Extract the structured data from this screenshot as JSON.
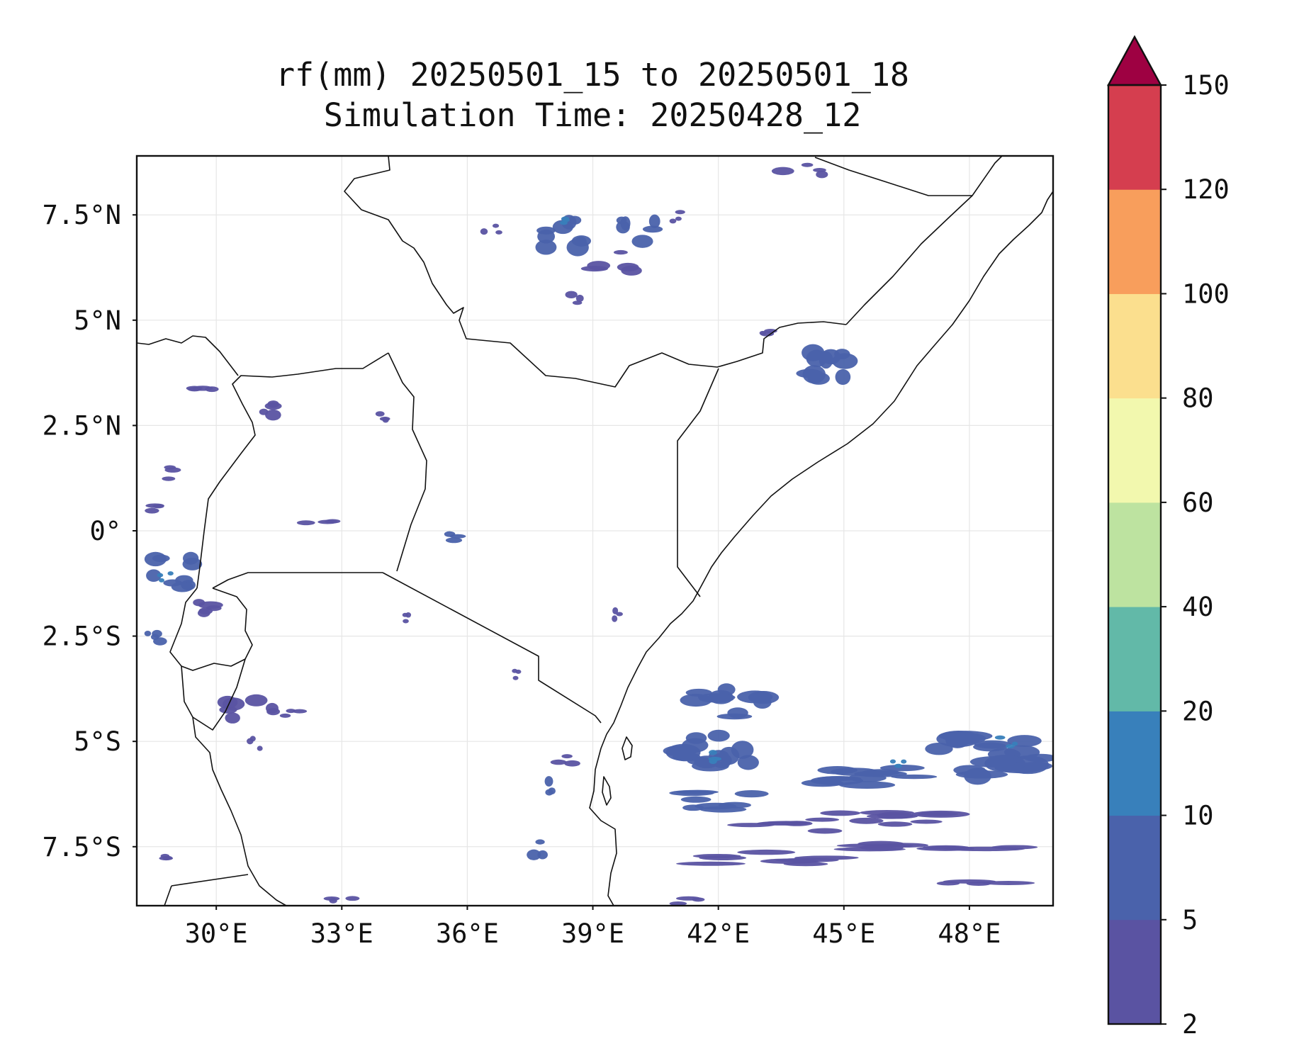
{
  "figure": {
    "title_line1": "rf(mm) 20250501_15 to 20250501_18",
    "title_line2": "Simulation Time: 20250428_12"
  },
  "map": {
    "extent": {
      "lon_min": 28.1,
      "lon_max": 50.0,
      "lat_min": -8.9,
      "lat_max": 8.9
    },
    "x_ticks": [
      {
        "lon": 30,
        "label": "30°E"
      },
      {
        "lon": 33,
        "label": "33°E"
      },
      {
        "lon": 36,
        "label": "36°E"
      },
      {
        "lon": 39,
        "label": "39°E"
      },
      {
        "lon": 42,
        "label": "42°E"
      },
      {
        "lon": 45,
        "label": "45°E"
      },
      {
        "lon": 48,
        "label": "48°E"
      }
    ],
    "y_ticks": [
      {
        "lat": 7.5,
        "label": "7.5°N"
      },
      {
        "lat": 5,
        "label": "5°N"
      },
      {
        "lat": 2.5,
        "label": "2.5°N"
      },
      {
        "lat": 0,
        "label": "0°"
      },
      {
        "lat": -2.5,
        "label": "2.5°S"
      },
      {
        "lat": -5,
        "label": "5°S"
      },
      {
        "lat": -7.5,
        "label": "7.5°S"
      }
    ],
    "gridlines": true,
    "rain_cells": [
      {
        "lon": 38.2,
        "lat": 7.0,
        "w": 1.4,
        "h": 1.3,
        "level": 1
      },
      {
        "lon": 40.0,
        "lat": 7.2,
        "w": 1.2,
        "h": 1.0,
        "level": 1
      },
      {
        "lon": 39.5,
        "lat": 6.4,
        "w": 1.6,
        "h": 0.7,
        "level": 0
      },
      {
        "lon": 38.4,
        "lat": 7.4,
        "w": 0.5,
        "h": 0.4,
        "level": 2
      },
      {
        "lon": 38.7,
        "lat": 5.5,
        "w": 0.8,
        "h": 0.6,
        "level": 0
      },
      {
        "lon": 36.6,
        "lat": 7.1,
        "w": 0.5,
        "h": 0.5,
        "level": 0
      },
      {
        "lon": 41.0,
        "lat": 7.4,
        "w": 0.7,
        "h": 0.6,
        "level": 0
      },
      {
        "lon": 44.0,
        "lat": 8.5,
        "w": 1.4,
        "h": 0.6,
        "level": 0
      },
      {
        "lon": 44.7,
        "lat": 4.0,
        "w": 1.6,
        "h": 1.3,
        "level": 1
      },
      {
        "lon": 43.2,
        "lat": 4.7,
        "w": 0.8,
        "h": 0.4,
        "level": 0
      },
      {
        "lon": 29.5,
        "lat": 3.4,
        "w": 1.8,
        "h": 0.4,
        "level": 0
      },
      {
        "lon": 31.3,
        "lat": 2.9,
        "w": 1.1,
        "h": 0.8,
        "level": 0
      },
      {
        "lon": 33.9,
        "lat": 2.6,
        "w": 0.8,
        "h": 0.5,
        "level": 0
      },
      {
        "lon": 28.8,
        "lat": 1.4,
        "w": 1.0,
        "h": 0.4,
        "level": 0
      },
      {
        "lon": 28.9,
        "lat": 0.5,
        "w": 1.1,
        "h": 0.4,
        "level": 0
      },
      {
        "lon": 29.0,
        "lat": -1.0,
        "w": 1.6,
        "h": 1.1,
        "level": 1
      },
      {
        "lon": 28.8,
        "lat": -1.1,
        "w": 0.4,
        "h": 0.3,
        "level": 2
      },
      {
        "lon": 30.0,
        "lat": -1.7,
        "w": 1.4,
        "h": 0.8,
        "level": 0
      },
      {
        "lon": 28.6,
        "lat": -2.7,
        "w": 0.8,
        "h": 0.9,
        "level": 1
      },
      {
        "lon": 30.8,
        "lat": -4.2,
        "w": 1.5,
        "h": 0.9,
        "level": 0
      },
      {
        "lon": 31.8,
        "lat": -4.3,
        "w": 1.2,
        "h": 0.3,
        "level": 0
      },
      {
        "lon": 30.9,
        "lat": -5.1,
        "w": 0.5,
        "h": 0.5,
        "level": 0
      },
      {
        "lon": 32.5,
        "lat": 0.2,
        "w": 1.5,
        "h": 0.4,
        "level": 0
      },
      {
        "lon": 35.9,
        "lat": -0.1,
        "w": 1.1,
        "h": 0.5,
        "level": 1
      },
      {
        "lon": 34.5,
        "lat": -2.0,
        "w": 0.4,
        "h": 0.5,
        "level": 0
      },
      {
        "lon": 39.5,
        "lat": -1.9,
        "w": 0.4,
        "h": 0.5,
        "level": 0
      },
      {
        "lon": 42.2,
        "lat": -4.0,
        "w": 2.2,
        "h": 1.0,
        "level": 1
      },
      {
        "lon": 42.0,
        "lat": -5.2,
        "w": 2.2,
        "h": 1.3,
        "level": 1
      },
      {
        "lon": 41.8,
        "lat": -5.3,
        "w": 1.0,
        "h": 0.5,
        "level": 2
      },
      {
        "lon": 42.0,
        "lat": -6.4,
        "w": 2.8,
        "h": 0.6,
        "level": 1
      },
      {
        "lon": 44.0,
        "lat": -7.0,
        "w": 3.0,
        "h": 0.4,
        "level": 0
      },
      {
        "lon": 45.5,
        "lat": -5.8,
        "w": 3.2,
        "h": 0.7,
        "level": 1
      },
      {
        "lon": 46.2,
        "lat": -5.5,
        "w": 0.6,
        "h": 0.3,
        "level": 2
      },
      {
        "lon": 48.5,
        "lat": -5.3,
        "w": 3.0,
        "h": 1.3,
        "level": 1
      },
      {
        "lon": 48.9,
        "lat": -5.0,
        "w": 0.6,
        "h": 0.3,
        "level": 2
      },
      {
        "lon": 47.2,
        "lat": -7.5,
        "w": 4.5,
        "h": 0.4,
        "level": 0
      },
      {
        "lon": 46.0,
        "lat": -6.8,
        "w": 3.5,
        "h": 0.5,
        "level": 0
      },
      {
        "lon": 43.0,
        "lat": -7.8,
        "w": 4.0,
        "h": 0.4,
        "level": 0
      },
      {
        "lon": 48.5,
        "lat": -8.3,
        "w": 3.0,
        "h": 0.3,
        "level": 0
      },
      {
        "lon": 37.8,
        "lat": -6.0,
        "w": 0.6,
        "h": 0.9,
        "level": 1
      },
      {
        "lon": 37.8,
        "lat": -7.6,
        "w": 0.8,
        "h": 0.8,
        "level": 1
      },
      {
        "lon": 38.6,
        "lat": -5.4,
        "w": 1.2,
        "h": 0.5,
        "level": 0
      },
      {
        "lon": 37.2,
        "lat": -3.4,
        "w": 0.3,
        "h": 0.3,
        "level": 0
      },
      {
        "lon": 41.5,
        "lat": -8.8,
        "w": 1.5,
        "h": 0.2,
        "level": 0
      },
      {
        "lon": 33.0,
        "lat": -8.7,
        "w": 0.9,
        "h": 0.4,
        "level": 0
      },
      {
        "lon": 29.0,
        "lat": -7.8,
        "w": 0.8,
        "h": 0.3,
        "level": 0
      }
    ]
  },
  "colorbar": {
    "boundaries": [
      2,
      5,
      10,
      20,
      40,
      60,
      80,
      100,
      120,
      150
    ],
    "labels": [
      "2",
      "5",
      "10",
      "20",
      "40",
      "60",
      "80",
      "100",
      "120",
      "150"
    ],
    "colors": [
      "#5a53a2",
      "#4a62ab",
      "#3880bb",
      "#62b9a8",
      "#bde3a0",
      "#f2f8ae",
      "#fbdf8e",
      "#f89e5c",
      "#d53e4f"
    ],
    "extend_color": "#9e0142"
  }
}
